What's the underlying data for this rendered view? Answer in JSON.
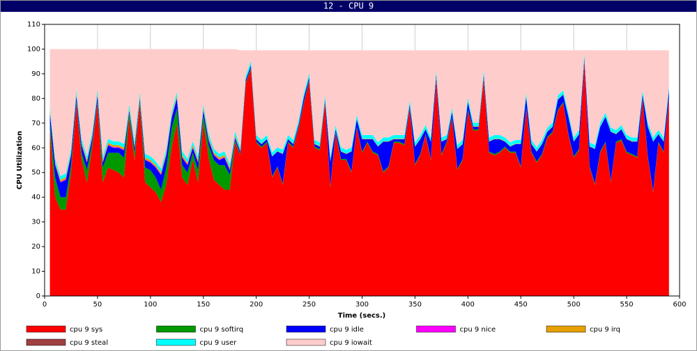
{
  "chart_data": {
    "type": "area",
    "stacked": true,
    "title": "12 - CPU 9",
    "xlabel": "Time (secs.)",
    "ylabel": "CPU Utilization",
    "xlim": [
      0,
      600
    ],
    "xticks": [
      0,
      50,
      100,
      150,
      200,
      250,
      300,
      350,
      400,
      450,
      500,
      550,
      600
    ],
    "ylim": [
      0,
      110
    ],
    "yticks": [
      0,
      10,
      20,
      30,
      40,
      50,
      60,
      70,
      80,
      90,
      100,
      110
    ],
    "grid": true,
    "legend": "bottom",
    "x": [
      5,
      10,
      15,
      20,
      25,
      30,
      35,
      40,
      45,
      50,
      55,
      60,
      65,
      70,
      75,
      80,
      85,
      90,
      95,
      100,
      105,
      110,
      115,
      120,
      125,
      130,
      135,
      140,
      145,
      150,
      155,
      160,
      165,
      170,
      175,
      180,
      185,
      190,
      195,
      200,
      205,
      210,
      215,
      220,
      225,
      230,
      235,
      240,
      245,
      250,
      255,
      260,
      265,
      270,
      275,
      280,
      285,
      290,
      295,
      300,
      305,
      310,
      315,
      320,
      325,
      330,
      335,
      340,
      345,
      350,
      355,
      360,
      365,
      370,
      375,
      380,
      385,
      390,
      395,
      400,
      405,
      410,
      415,
      420,
      425,
      430,
      435,
      440,
      445,
      450,
      455,
      460,
      465,
      470,
      475,
      480,
      485,
      490,
      495,
      500,
      505,
      510,
      515,
      520,
      525,
      530,
      535,
      540,
      545,
      550,
      555,
      560,
      565,
      570,
      575,
      580,
      585,
      590
    ],
    "series": [
      {
        "name": "cpu 9 sys",
        "color": "#ff0000",
        "values": [
          67,
          40,
          35,
          35,
          50,
          78,
          55,
          46,
          60,
          78,
          46,
          52,
          51,
          50,
          48,
          72,
          55,
          78,
          46,
          44,
          42,
          38,
          45,
          60,
          70,
          48,
          45,
          55,
          46,
          70,
          56,
          47,
          45,
          43,
          43,
          62,
          57,
          86,
          92,
          62,
          60,
          62,
          48,
          52,
          45,
          62,
          60,
          68,
          78,
          87,
          60,
          59,
          78,
          44,
          66,
          55,
          55,
          50,
          68,
          58,
          62,
          58,
          57,
          50,
          52,
          62,
          62,
          61,
          76,
          53,
          57,
          65,
          55,
          88,
          57,
          62,
          72,
          51,
          55,
          75,
          67,
          67,
          88,
          58,
          57,
          58,
          60,
          58,
          58,
          52,
          76,
          58,
          54,
          57,
          64,
          66,
          75,
          78,
          65,
          56,
          59,
          95,
          52,
          45,
          58,
          62,
          46,
          62,
          63,
          58,
          57,
          56,
          80,
          56,
          42,
          62,
          58,
          80
        ]
      },
      {
        "name": "cpu 9 softirq",
        "color": "#009900",
        "values": [
          3,
          8,
          5,
          5,
          3,
          1,
          3,
          5,
          2,
          1,
          6,
          6,
          7,
          8,
          8,
          2,
          3,
          1,
          6,
          7,
          6,
          5,
          7,
          8,
          6,
          5,
          5,
          3,
          5,
          3,
          5,
          8,
          8,
          10,
          6,
          1,
          0.5,
          0.5,
          0.5,
          0.5,
          0.5,
          0.5,
          0.5,
          0.5,
          0.5,
          0.5,
          0.5,
          0.5,
          0.5,
          0.5,
          0.5,
          0.5,
          0.5,
          0.5,
          0.5,
          0.5,
          0.5,
          0.5,
          0.5,
          0.5,
          0.5,
          0.5,
          0.5,
          0.5,
          0.5,
          0.5,
          0.5,
          0.5,
          0.5,
          0.5,
          0.5,
          0.5,
          0.5,
          0.5,
          0.5,
          0.5,
          0.5,
          0.5,
          0.5,
          0.5,
          0.5,
          0.5,
          0.5,
          0.5,
          0.5,
          0.5,
          0.5,
          0.5,
          0.5,
          0.5,
          0.5,
          0.5,
          0.5,
          0.5,
          0.5,
          0.5,
          0.5,
          0.5,
          0.5,
          0.5,
          0.5,
          0.5,
          0.5,
          0.5,
          0.5,
          0.5,
          0.5,
          0.5,
          0.5,
          0.5,
          0.5,
          0.5,
          0.5,
          0.5,
          0.5,
          0.5,
          0.5,
          0.5
        ]
      },
      {
        "name": "cpu 9 idle",
        "color": "#0000ff",
        "values": [
          4,
          5,
          6,
          7,
          4,
          2,
          3,
          3,
          2,
          2,
          2,
          3,
          2,
          2,
          3,
          1,
          2,
          1,
          3,
          3,
          4,
          6,
          5,
          4,
          4,
          3,
          3,
          2,
          3,
          2,
          2,
          2,
          2,
          3,
          2,
          1,
          1,
          1,
          1,
          1,
          1,
          1,
          8,
          6,
          12,
          1,
          1,
          1,
          2,
          1,
          1,
          1,
          1,
          10,
          1,
          3,
          2,
          8,
          3,
          5,
          1,
          5,
          3,
          12,
          10,
          1,
          1,
          2,
          1,
          7,
          6,
          2,
          7,
          1,
          5,
          1,
          2,
          8,
          6,
          3,
          1,
          1,
          1,
          4,
          6,
          5,
          2,
          2,
          3,
          9,
          4,
          3,
          4,
          4,
          2,
          2,
          4,
          3,
          7,
          6,
          6,
          1,
          8,
          14,
          10,
          10,
          20,
          3,
          4,
          5,
          5,
          6,
          1,
          12,
          20,
          3,
          4,
          3
        ]
      },
      {
        "name": "cpu 9 nice",
        "color": "#ff00ff",
        "values": [
          0.3,
          0.3,
          0.3,
          0.3,
          0.3,
          0.3,
          0.3,
          0.3,
          0.3,
          0.3,
          0.3,
          0.3,
          0.3,
          0.3,
          0.3,
          0.3,
          0.3,
          0.3,
          0.3,
          0.3,
          0.3,
          0.3,
          0.3,
          0.3,
          0.3,
          0.3,
          0.3,
          0.3,
          0.3,
          0.3,
          0.3,
          0.3,
          0.3,
          0.3,
          0.3,
          0.3,
          0,
          0,
          0,
          0,
          0,
          0,
          0,
          0,
          0,
          0,
          0,
          0,
          0,
          0,
          0,
          0,
          0,
          0,
          0,
          0,
          0,
          0,
          0,
          0,
          0,
          0,
          0,
          0,
          0,
          0,
          0,
          0,
          0,
          0,
          0,
          0,
          0,
          0,
          0,
          0,
          0,
          0,
          0,
          0,
          0,
          0,
          0,
          0,
          0,
          0,
          0,
          0,
          0,
          0,
          0,
          0,
          0,
          0,
          0,
          0,
          0,
          0,
          0,
          0,
          0,
          0,
          0,
          0,
          0,
          0,
          0,
          0,
          0,
          0,
          0,
          0,
          0,
          0,
          0,
          0,
          0,
          0
        ]
      },
      {
        "name": "cpu 9 irq",
        "color": "#e6a000",
        "values": [
          0.8,
          0.8,
          0.8,
          0.8,
          0.8,
          0.8,
          0.8,
          0.8,
          0.8,
          0.8,
          0.8,
          0.8,
          0.8,
          0.8,
          0.8,
          0.8,
          0.8,
          0.8,
          0.8,
          0.8,
          0.8,
          0.8,
          0.8,
          0.8,
          0.8,
          0.8,
          0.8,
          0.8,
          0.8,
          0.8,
          0.8,
          0.8,
          0.8,
          0.8,
          0.8,
          0.8,
          0.2,
          0.2,
          0.2,
          0.2,
          0.2,
          0.2,
          0.2,
          0.2,
          0.2,
          0.2,
          0.2,
          0.2,
          0.2,
          0.2,
          0.2,
          0.2,
          0.2,
          0.2,
          0.2,
          0.2,
          0.2,
          0.2,
          0.2,
          0.2,
          0.2,
          0.2,
          0.2,
          0.2,
          0.2,
          0.2,
          0.2,
          0.2,
          0.2,
          0.2,
          0.2,
          0.2,
          0.2,
          0.2,
          0.2,
          0.2,
          0.2,
          0.2,
          0.2,
          0.2,
          0.2,
          0.2,
          0.2,
          0.2,
          0.2,
          0.2,
          0.2,
          0.2,
          0.2,
          0.2,
          0.2,
          0.2,
          0.2,
          0.2,
          0.2,
          0.2,
          0.2,
          0.2,
          0.2,
          0.2,
          0.2,
          0.2,
          0.2,
          0.2,
          0.2,
          0.2,
          0.2,
          0.2,
          0.2,
          0.2,
          0.2,
          0.2,
          0.2,
          0.2,
          0.2,
          0.2,
          0.2,
          0.2
        ]
      },
      {
        "name": "cpu 9 steal",
        "color": "#a04040",
        "values": [
          0,
          0,
          0,
          0,
          0,
          0,
          0,
          0,
          0,
          0,
          0,
          0,
          0,
          0,
          0,
          0,
          0,
          0,
          0,
          0,
          0,
          0,
          0,
          0,
          0,
          0,
          0,
          0,
          0,
          0,
          0,
          0,
          0,
          0,
          0,
          0,
          0,
          0,
          0,
          0,
          0,
          0,
          0,
          0,
          0,
          0,
          0,
          0,
          0,
          0,
          0,
          0,
          0,
          0,
          0,
          0,
          0,
          0,
          0,
          0,
          0,
          0,
          0,
          0,
          0,
          0,
          0,
          0,
          0,
          0,
          0,
          0,
          0,
          0,
          0,
          0,
          0,
          0,
          0,
          0,
          0,
          0,
          0,
          0,
          0,
          0,
          0,
          0,
          0,
          0,
          0,
          0,
          0,
          0,
          0,
          0,
          0,
          0,
          0,
          0,
          0,
          0,
          0,
          0,
          0,
          0,
          0,
          0,
          0,
          0,
          0,
          0,
          0,
          0,
          0,
          0,
          0,
          0
        ]
      },
      {
        "name": "cpu 9 user",
        "color": "#00ffff",
        "values": [
          1.5,
          1.5,
          1.5,
          1.5,
          1.5,
          1.5,
          1.5,
          1.5,
          1.5,
          1.5,
          1.5,
          1.5,
          1.5,
          1.5,
          1.5,
          1.5,
          1.5,
          1.5,
          1.5,
          1.5,
          1.5,
          1.5,
          1.5,
          1.5,
          1.5,
          1.5,
          1.5,
          1.5,
          1.5,
          1.5,
          1.5,
          1.5,
          1.5,
          1.5,
          1.5,
          1.5,
          1.5,
          1.5,
          1.5,
          1.5,
          1.5,
          1.5,
          1.5,
          1.5,
          1.5,
          1.5,
          1.5,
          1.5,
          1.5,
          1.5,
          1.5,
          1.5,
          1.5,
          1.5,
          1.5,
          1.5,
          1.5,
          1.5,
          1.5,
          1.5,
          1.5,
          1.5,
          1.5,
          1.5,
          1.5,
          1.5,
          1.5,
          1.5,
          1.5,
          1.5,
          1.5,
          1.5,
          1.5,
          1.5,
          1.5,
          1.5,
          1.5,
          1.5,
          1.5,
          1.5,
          1.5,
          1.5,
          1.5,
          1.5,
          1.5,
          1.5,
          1.5,
          1.5,
          1.5,
          1.5,
          1.5,
          1.5,
          1.5,
          1.5,
          1.5,
          1.5,
          1.5,
          1.5,
          1.5,
          1.5,
          1.5,
          1.5,
          1.5,
          1.5,
          1.5,
          1.5,
          1.5,
          1.5,
          1.5,
          1.5,
          1.5,
          1.5,
          1.5,
          1.5,
          1.5,
          1.5,
          1.5,
          1.5
        ]
      },
      {
        "name": "cpu 9 iowait",
        "color": "#ffcccc",
        "values": [
          23.4,
          44.4,
          51.4,
          50.4,
          40.4,
          16.4,
          36.4,
          43.4,
          33.4,
          16.4,
          43.4,
          36.4,
          37.4,
          37.4,
          38.4,
          22.4,
          37.4,
          17.4,
          42.4,
          43.4,
          45.4,
          48.4,
          40.4,
          25.4,
          17.4,
          41.4,
          44.4,
          37.4,
          43.4,
          22.4,
          34.4,
          40.4,
          42.4,
          41.4,
          46.4,
          33.4,
          39.3,
          10.3,
          4.3,
          34.3,
          36.3,
          34.3,
          41.3,
          39.3,
          40.3,
          34.3,
          36.3,
          28.3,
          17.3,
          9.3,
          36.3,
          37.3,
          18.3,
          43.3,
          30.3,
          39.3,
          40.3,
          39.3,
          26.3,
          34.3,
          34.3,
          34.3,
          37.3,
          35.3,
          35.3,
          34.3,
          34.3,
          34.3,
          20.3,
          37.3,
          34.3,
          30.3,
          35.3,
          8.3,
          35.3,
          34.3,
          23.3,
          38.3,
          36.3,
          19.3,
          29.3,
          29.3,
          8.3,
          35.3,
          34.3,
          34.3,
          35.3,
          37.3,
          36.3,
          36.3,
          17.3,
          36.3,
          39.3,
          36.3,
          31.3,
          29.3,
          18.3,
          16.3,
          25.3,
          35.3,
          32.3,
          1.3,
          37.3,
          38.3,
          29.3,
          25.3,
          31.3,
          32.3,
          30.3,
          34.3,
          35.3,
          35.3,
          16.3,
          29.3,
          35.3,
          32.3,
          35.3,
          14.3
        ]
      }
    ]
  }
}
